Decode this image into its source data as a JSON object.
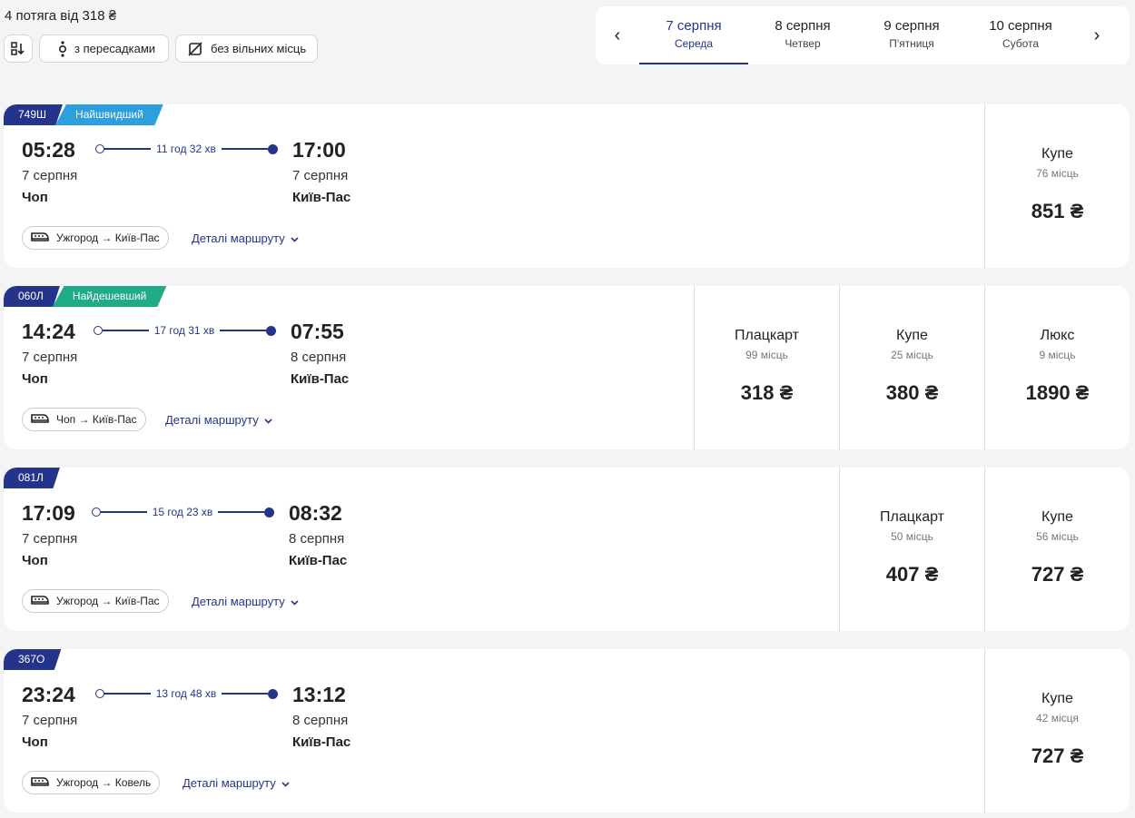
{
  "summary": "4 потяга від 318 ₴",
  "filters": [
    {
      "label": "з пересадками",
      "icon": "transfer-icon"
    },
    {
      "label": "без вільних місць",
      "icon": "no-seats-icon"
    }
  ],
  "dates": [
    {
      "date": "7 серпня",
      "weekday": "Середа",
      "active": true
    },
    {
      "date": "8 серпня",
      "weekday": "Четвер"
    },
    {
      "date": "9 серпня",
      "weekday": "П'ятниця"
    },
    {
      "date": "10 серпня",
      "weekday": "Субота"
    }
  ],
  "colors": {
    "navy": "#24348a",
    "fastest": "#2d9fdc",
    "cheapest": "#1faa88"
  },
  "details_label": "Деталі маршруту",
  "trains": [
    {
      "number": "749Ш",
      "badge": "Найшвидший",
      "badge_color": "#2d9fdc",
      "dep_time": "05:28",
      "dep_date": "7 серпня",
      "dep_station": "Чоп",
      "duration": "11 год 32 хв",
      "arr_time": "17:00",
      "arr_date": "7 серпня",
      "arr_station": "Київ-Пас",
      "route": "Ужгород → Київ-Пас",
      "prices": [
        {
          "class": "Купе",
          "seats": "76 місць",
          "price": "851 ₴"
        }
      ]
    },
    {
      "number": "060Л",
      "badge": "Найдешевший",
      "badge_color": "#1faa88",
      "dep_time": "14:24",
      "dep_date": "7 серпня",
      "dep_station": "Чоп",
      "duration": "17 год 31 хв",
      "arr_time": "07:55",
      "arr_date": "8 серпня",
      "arr_station": "Київ-Пас",
      "route": "Чоп → Київ-Пас",
      "prices": [
        {
          "class": "Плацкарт",
          "seats": "99 місць",
          "price": "318 ₴"
        },
        {
          "class": "Купе",
          "seats": "25 місць",
          "price": "380 ₴"
        },
        {
          "class": "Люкс",
          "seats": "9 місць",
          "price": "1890 ₴"
        }
      ]
    },
    {
      "number": "081Л",
      "dep_time": "17:09",
      "dep_date": "7 серпня",
      "dep_station": "Чоп",
      "duration": "15 год 23 хв",
      "arr_time": "08:32",
      "arr_date": "8 серпня",
      "arr_station": "Київ-Пас",
      "route": "Ужгород → Київ-Пас",
      "prices": [
        {
          "class": "Плацкарт",
          "seats": "50 місць",
          "price": "407 ₴"
        },
        {
          "class": "Купе",
          "seats": "56 місць",
          "price": "727 ₴"
        }
      ]
    },
    {
      "number": "367О",
      "dep_time": "23:24",
      "dep_date": "7 серпня",
      "dep_station": "Чоп",
      "duration": "13 год 48 хв",
      "arr_time": "13:12",
      "arr_date": "8 серпня",
      "arr_station": "Київ-Пас",
      "route": "Ужгород → Ковель",
      "prices": [
        {
          "class": "Купе",
          "seats": "42 місця",
          "price": "727 ₴"
        }
      ]
    }
  ]
}
